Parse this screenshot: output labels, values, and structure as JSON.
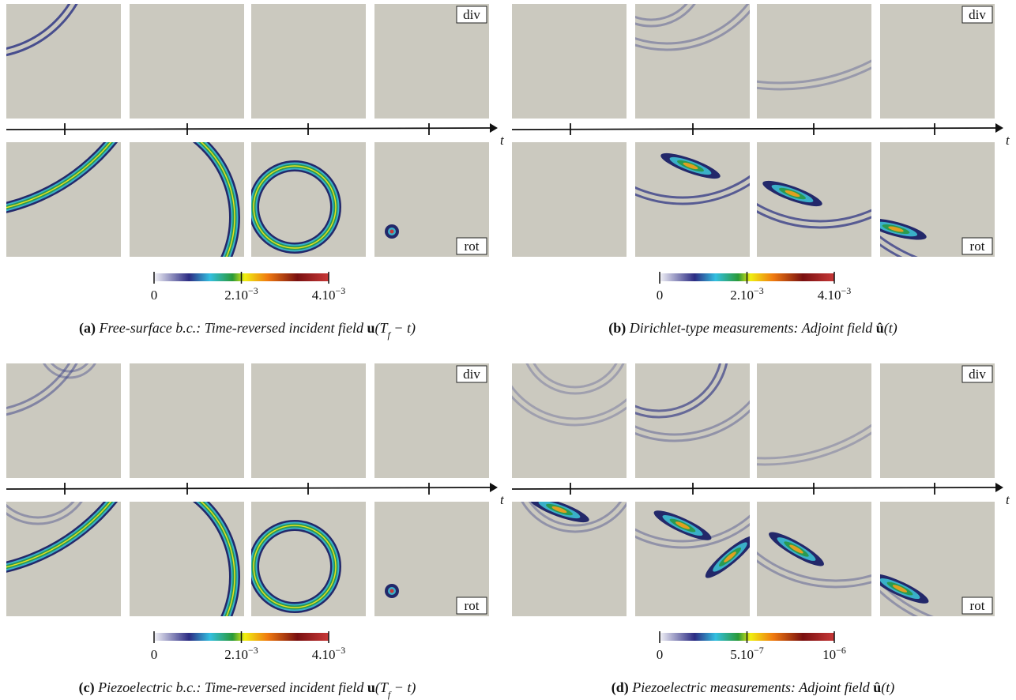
{
  "panels": [
    {
      "tags": {
        "top": "div",
        "bottom": "rot"
      },
      "axis_label": "t",
      "colorbar": {
        "ticks": [
          {
            "base": "0"
          },
          {
            "base": "2.10",
            "exp": "−3"
          },
          {
            "base": "4.10",
            "exp": "−3"
          }
        ]
      },
      "caption": {
        "label": "(a)",
        "text": "Free-surface b.c.: Time-reversed incident field",
        "math": [
          {
            "text": "u",
            "style": "bold"
          },
          {
            "text": "(T",
            "style": "normal"
          },
          {
            "text": "f",
            "style": "sub"
          },
          {
            "text": " − t)",
            "style": "normal"
          }
        ]
      }
    },
    {
      "tags": {
        "top": "div",
        "bottom": "rot"
      },
      "axis_label": "t",
      "colorbar": {
        "ticks": [
          {
            "base": "0"
          },
          {
            "base": "2.10",
            "exp": "−3"
          },
          {
            "base": "4.10",
            "exp": "−3"
          }
        ]
      },
      "caption": {
        "label": "(b)",
        "text": "Dirichlet-type measurements: Adjoint field",
        "math": [
          {
            "text": "û",
            "style": "bold"
          },
          {
            "text": "(t)",
            "style": "normal"
          }
        ]
      }
    },
    {
      "tags": {
        "top": "div",
        "bottom": "rot"
      },
      "axis_label": "t",
      "colorbar": {
        "ticks": [
          {
            "base": "0"
          },
          {
            "base": "2.10",
            "exp": "−3"
          },
          {
            "base": "4.10",
            "exp": "−3"
          }
        ]
      },
      "caption": {
        "label": "(c)",
        "text": "Piezoelectric b.c.: Time-reversed incident field",
        "math": [
          {
            "text": "u",
            "style": "bold"
          },
          {
            "text": "(T",
            "style": "normal"
          },
          {
            "text": "f",
            "style": "sub"
          },
          {
            "text": " − t)",
            "style": "normal"
          }
        ]
      }
    },
    {
      "tags": {
        "top": "div",
        "bottom": "rot"
      },
      "axis_label": "t",
      "colorbar": {
        "ticks": [
          {
            "base": "0"
          },
          {
            "base": "5.10",
            "exp": "−7"
          },
          {
            "base": "10",
            "exp": "−6"
          }
        ]
      },
      "caption": {
        "label": "(d)",
        "text": "Piezoelectric measurements: Adjoint field",
        "math": [
          {
            "text": "û",
            "style": "bold"
          },
          {
            "text": "(t)",
            "style": "normal"
          }
        ]
      }
    }
  ]
}
